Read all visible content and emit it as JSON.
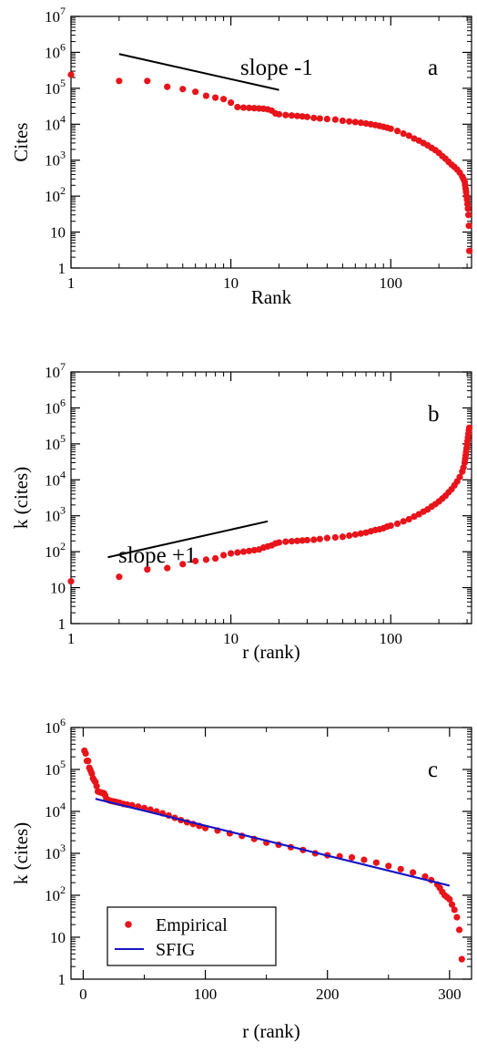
{
  "chart_data": [
    {
      "type": "scatter",
      "panel_label": "a",
      "xlabel": "Rank",
      "ylabel": "Cites",
      "xscale": "log",
      "yscale": "log",
      "xlim": [
        1,
        320
      ],
      "ylim": [
        1,
        10000000
      ],
      "xticks": [
        {
          "value": 1,
          "label": "1"
        },
        {
          "value": 10,
          "label": "10"
        },
        {
          "value": 100,
          "label": "100"
        }
      ],
      "yticks": [
        {
          "value": 1,
          "label": "1",
          "sup": ""
        },
        {
          "value": 10,
          "label": "10",
          "sup": ""
        },
        {
          "value": 100,
          "label": "10",
          "sup": "2"
        },
        {
          "value": 1000,
          "label": "10",
          "sup": "3"
        },
        {
          "value": 10000,
          "label": "10",
          "sup": "4"
        },
        {
          "value": 100000,
          "label": "10",
          "sup": "5"
        },
        {
          "value": 1000000,
          "label": "10",
          "sup": "6"
        },
        {
          "value": 10000000,
          "label": "10",
          "sup": "7"
        }
      ],
      "series": [
        {
          "color": "#e8141b",
          "marker": "circle",
          "x": [
            1,
            2,
            3,
            4,
            5,
            6,
            7,
            8,
            9,
            10,
            11,
            12,
            13,
            14,
            15,
            16,
            17,
            18,
            19,
            20,
            22,
            24,
            26,
            28,
            30,
            33,
            36,
            40,
            45,
            50,
            55,
            60,
            65,
            70,
            75,
            80,
            85,
            90,
            95,
            100,
            110,
            120,
            130,
            140,
            150,
            160,
            170,
            180,
            190,
            200,
            210,
            220,
            230,
            240,
            250,
            260,
            270,
            280,
            285,
            290,
            292,
            294,
            296,
            298,
            300,
            302,
            304,
            306,
            308,
            310
          ],
          "y": [
            240000,
            160000,
            160000,
            110000,
            95000,
            80000,
            62000,
            55000,
            50000,
            40000,
            30000,
            29000,
            28500,
            28000,
            27500,
            27000,
            26000,
            24000,
            20000,
            19000,
            18000,
            17500,
            17000,
            16500,
            16000,
            15000,
            14500,
            14000,
            13500,
            12500,
            12000,
            11500,
            11000,
            10500,
            10000,
            9500,
            9000,
            8500,
            8000,
            7500,
            6500,
            5500,
            4800,
            4000,
            3500,
            3000,
            2600,
            2200,
            1900,
            1600,
            1300,
            1100,
            900,
            750,
            650,
            550,
            450,
            350,
            300,
            250,
            200,
            160,
            130,
            100,
            80,
            60,
            45,
            30,
            15,
            3
          ]
        }
      ],
      "reference_line": {
        "label": "slope -1",
        "x": [
          2,
          20
        ],
        "y": [
          900000,
          90000
        ]
      }
    },
    {
      "type": "scatter",
      "panel_label": "b",
      "xlabel": "r (rank)",
      "ylabel": "k (cites)",
      "xscale": "log",
      "yscale": "log",
      "xlim": [
        1,
        320
      ],
      "ylim": [
        1,
        10000000
      ],
      "xticks": [
        {
          "value": 1,
          "label": "1"
        },
        {
          "value": 10,
          "label": "10"
        },
        {
          "value": 100,
          "label": "100"
        }
      ],
      "yticks": [
        {
          "value": 1,
          "label": "1",
          "sup": ""
        },
        {
          "value": 10,
          "label": "10",
          "sup": ""
        },
        {
          "value": 100,
          "label": "10",
          "sup": "2"
        },
        {
          "value": 1000,
          "label": "10",
          "sup": "3"
        },
        {
          "value": 10000,
          "label": "10",
          "sup": "4"
        },
        {
          "value": 100000,
          "label": "10",
          "sup": "5"
        },
        {
          "value": 1000000,
          "label": "10",
          "sup": "6"
        },
        {
          "value": 10000000,
          "label": "10",
          "sup": "7"
        }
      ],
      "series": [
        {
          "color": "#e8141b",
          "marker": "circle",
          "x": [
            1,
            2,
            3,
            4,
            5,
            6,
            7,
            8,
            9,
            10,
            11,
            12,
            13,
            14,
            15,
            16,
            17,
            18,
            19,
            20,
            22,
            24,
            26,
            28,
            30,
            33,
            36,
            40,
            45,
            50,
            55,
            60,
            65,
            70,
            75,
            80,
            85,
            90,
            95,
            100,
            110,
            120,
            130,
            140,
            150,
            160,
            170,
            180,
            190,
            200,
            210,
            220,
            230,
            240,
            250,
            260,
            270,
            280,
            285,
            290,
            292,
            294,
            296,
            298,
            300,
            302,
            304,
            306,
            308,
            310
          ],
          "y": [
            15,
            20,
            32,
            35,
            45,
            55,
            60,
            65,
            80,
            90,
            95,
            100,
            105,
            110,
            115,
            130,
            140,
            150,
            170,
            180,
            190,
            195,
            200,
            205,
            210,
            215,
            225,
            240,
            250,
            260,
            280,
            300,
            320,
            340,
            370,
            400,
            420,
            450,
            500,
            530,
            600,
            700,
            800,
            950,
            1100,
            1300,
            1500,
            1800,
            2100,
            2500,
            3000,
            3600,
            4500,
            5500,
            7000,
            9000,
            12000,
            17000,
            22000,
            30000,
            38000,
            48000,
            60000,
            75000,
            95000,
            120000,
            150000,
            190000,
            240000,
            280000
          ]
        }
      ],
      "reference_line": {
        "label": "slope +1",
        "x": [
          1.7,
          17
        ],
        "y": [
          70,
          700
        ]
      }
    },
    {
      "type": "scatter",
      "panel_label": "c",
      "xlabel": "r (rank)",
      "ylabel": "k (cites)",
      "xscale": "linear",
      "yscale": "log",
      "xlim": [
        -10,
        318
      ],
      "ylim": [
        1,
        1000000
      ],
      "xticks": [
        {
          "value": 0,
          "label": "0"
        },
        {
          "value": 100,
          "label": "100"
        },
        {
          "value": 200,
          "label": "200"
        },
        {
          "value": 300,
          "label": "300"
        }
      ],
      "yticks": [
        {
          "value": 1,
          "label": "1",
          "sup": ""
        },
        {
          "value": 10,
          "label": "10",
          "sup": ""
        },
        {
          "value": 100,
          "label": "10",
          "sup": "2"
        },
        {
          "value": 1000,
          "label": "10",
          "sup": "3"
        },
        {
          "value": 10000,
          "label": "10",
          "sup": "4"
        },
        {
          "value": 100000,
          "label": "10",
          "sup": "5"
        },
        {
          "value": 1000000,
          "label": "10",
          "sup": "6"
        }
      ],
      "legend": {
        "placement": "bottom-left"
      },
      "series": [
        {
          "name": "Empirical",
          "color": "#e8141b",
          "marker": "circle",
          "x": [
            1,
            2,
            3,
            4,
            5,
            6,
            7,
            8,
            9,
            10,
            11,
            12,
            13,
            14,
            15,
            16,
            17,
            18,
            19,
            20,
            22,
            24,
            26,
            28,
            30,
            33,
            36,
            40,
            45,
            50,
            55,
            60,
            65,
            70,
            75,
            80,
            85,
            90,
            95,
            100,
            110,
            120,
            130,
            140,
            150,
            160,
            170,
            180,
            190,
            200,
            210,
            220,
            230,
            240,
            250,
            260,
            270,
            280,
            285,
            290,
            292,
            294,
            296,
            298,
            300,
            302,
            304,
            306,
            308,
            310
          ],
          "y": [
            280000,
            240000,
            160000,
            160000,
            110000,
            95000,
            80000,
            62000,
            55000,
            50000,
            40000,
            30000,
            29000,
            28500,
            28000,
            27500,
            27000,
            24000,
            20000,
            19000,
            18000,
            17500,
            17000,
            16500,
            16000,
            15000,
            14500,
            14000,
            13000,
            12000,
            11000,
            10000,
            9000,
            8000,
            7000,
            6200,
            5500,
            5000,
            4500,
            4000,
            3500,
            3000,
            2600,
            2200,
            1800,
            1600,
            1400,
            1200,
            1000,
            900,
            850,
            800,
            700,
            600,
            500,
            420,
            350,
            280,
            230,
            180,
            150,
            120,
            100,
            90,
            80,
            60,
            45,
            30,
            15,
            3
          ]
        },
        {
          "name": "SFIG",
          "color": "#1515c8",
          "marker": "line",
          "x": [
            10,
            300
          ],
          "y": [
            20000,
            170
          ]
        }
      ]
    }
  ]
}
